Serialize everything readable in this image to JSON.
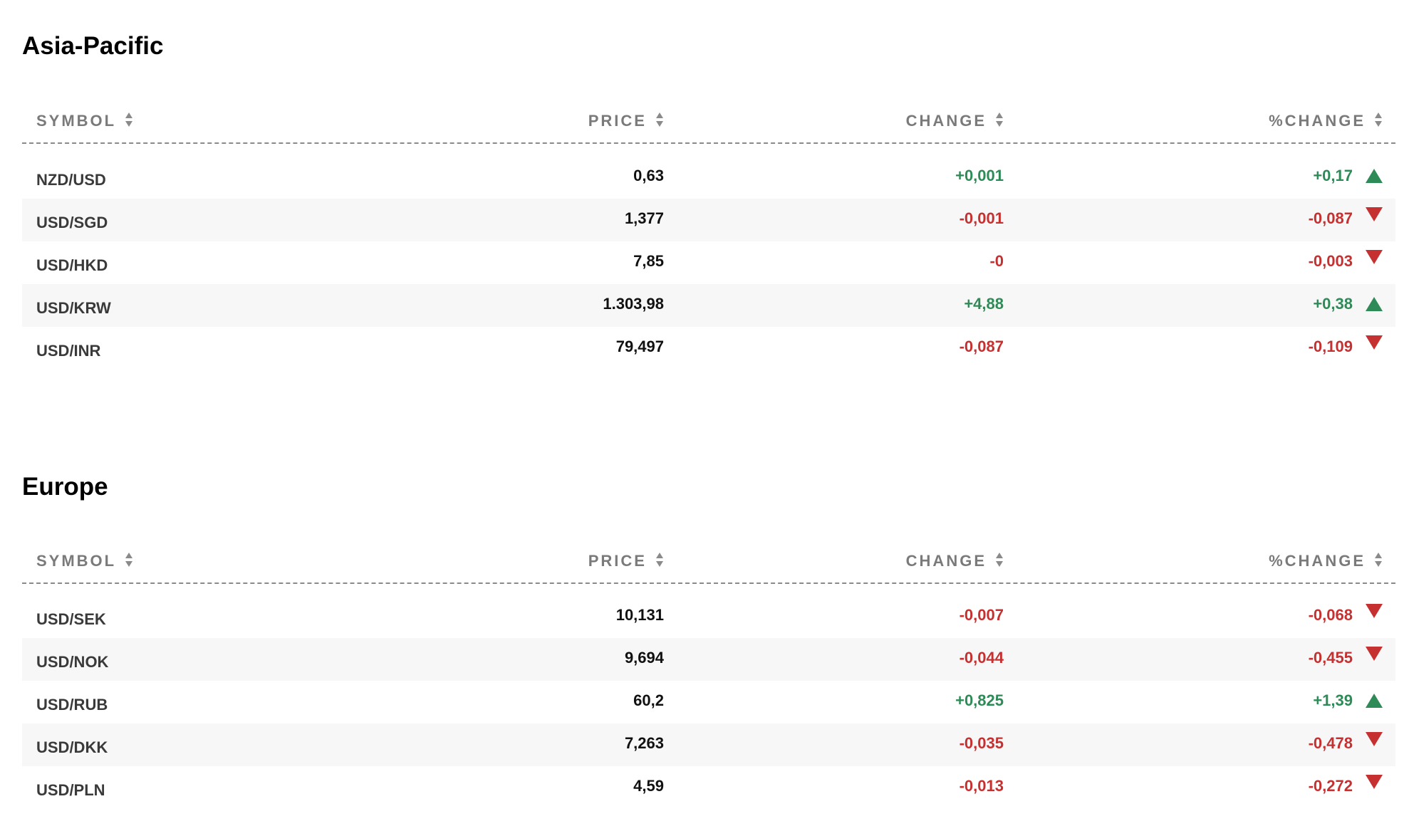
{
  "colors": {
    "positive": "#2e8b57",
    "negative": "#c53030",
    "header_text": "#7a7a7a",
    "row_alt_bg": "#f7f7f7"
  },
  "columns": {
    "symbol": "SYMBOL",
    "price": "PRICE",
    "change": "CHANGE",
    "pct_change": "%CHANGE"
  },
  "sections": [
    {
      "title": "Asia-Pacific",
      "rows": [
        {
          "symbol": "NZD/USD",
          "price": "0,63",
          "change": "+0,001",
          "pct_change": "+0,17",
          "direction": "up"
        },
        {
          "symbol": "USD/SGD",
          "price": "1,377",
          "change": "-0,001",
          "pct_change": "-0,087",
          "direction": "down"
        },
        {
          "symbol": "USD/HKD",
          "price": "7,85",
          "change": "-0",
          "pct_change": "-0,003",
          "direction": "down"
        },
        {
          "symbol": "USD/KRW",
          "price": "1.303,98",
          "change": "+4,88",
          "pct_change": "+0,38",
          "direction": "up"
        },
        {
          "symbol": "USD/INR",
          "price": "79,497",
          "change": "-0,087",
          "pct_change": "-0,109",
          "direction": "down"
        }
      ]
    },
    {
      "title": "Europe",
      "rows": [
        {
          "symbol": "USD/SEK",
          "price": "10,131",
          "change": "-0,007",
          "pct_change": "-0,068",
          "direction": "down"
        },
        {
          "symbol": "USD/NOK",
          "price": "9,694",
          "change": "-0,044",
          "pct_change": "-0,455",
          "direction": "down"
        },
        {
          "symbol": "USD/RUB",
          "price": "60,2",
          "change": "+0,825",
          "pct_change": "+1,39",
          "direction": "up"
        },
        {
          "symbol": "USD/DKK",
          "price": "7,263",
          "change": "-0,035",
          "pct_change": "-0,478",
          "direction": "down"
        },
        {
          "symbol": "USD/PLN",
          "price": "4,59",
          "change": "-0,013",
          "pct_change": "-0,272",
          "direction": "down"
        }
      ]
    }
  ]
}
